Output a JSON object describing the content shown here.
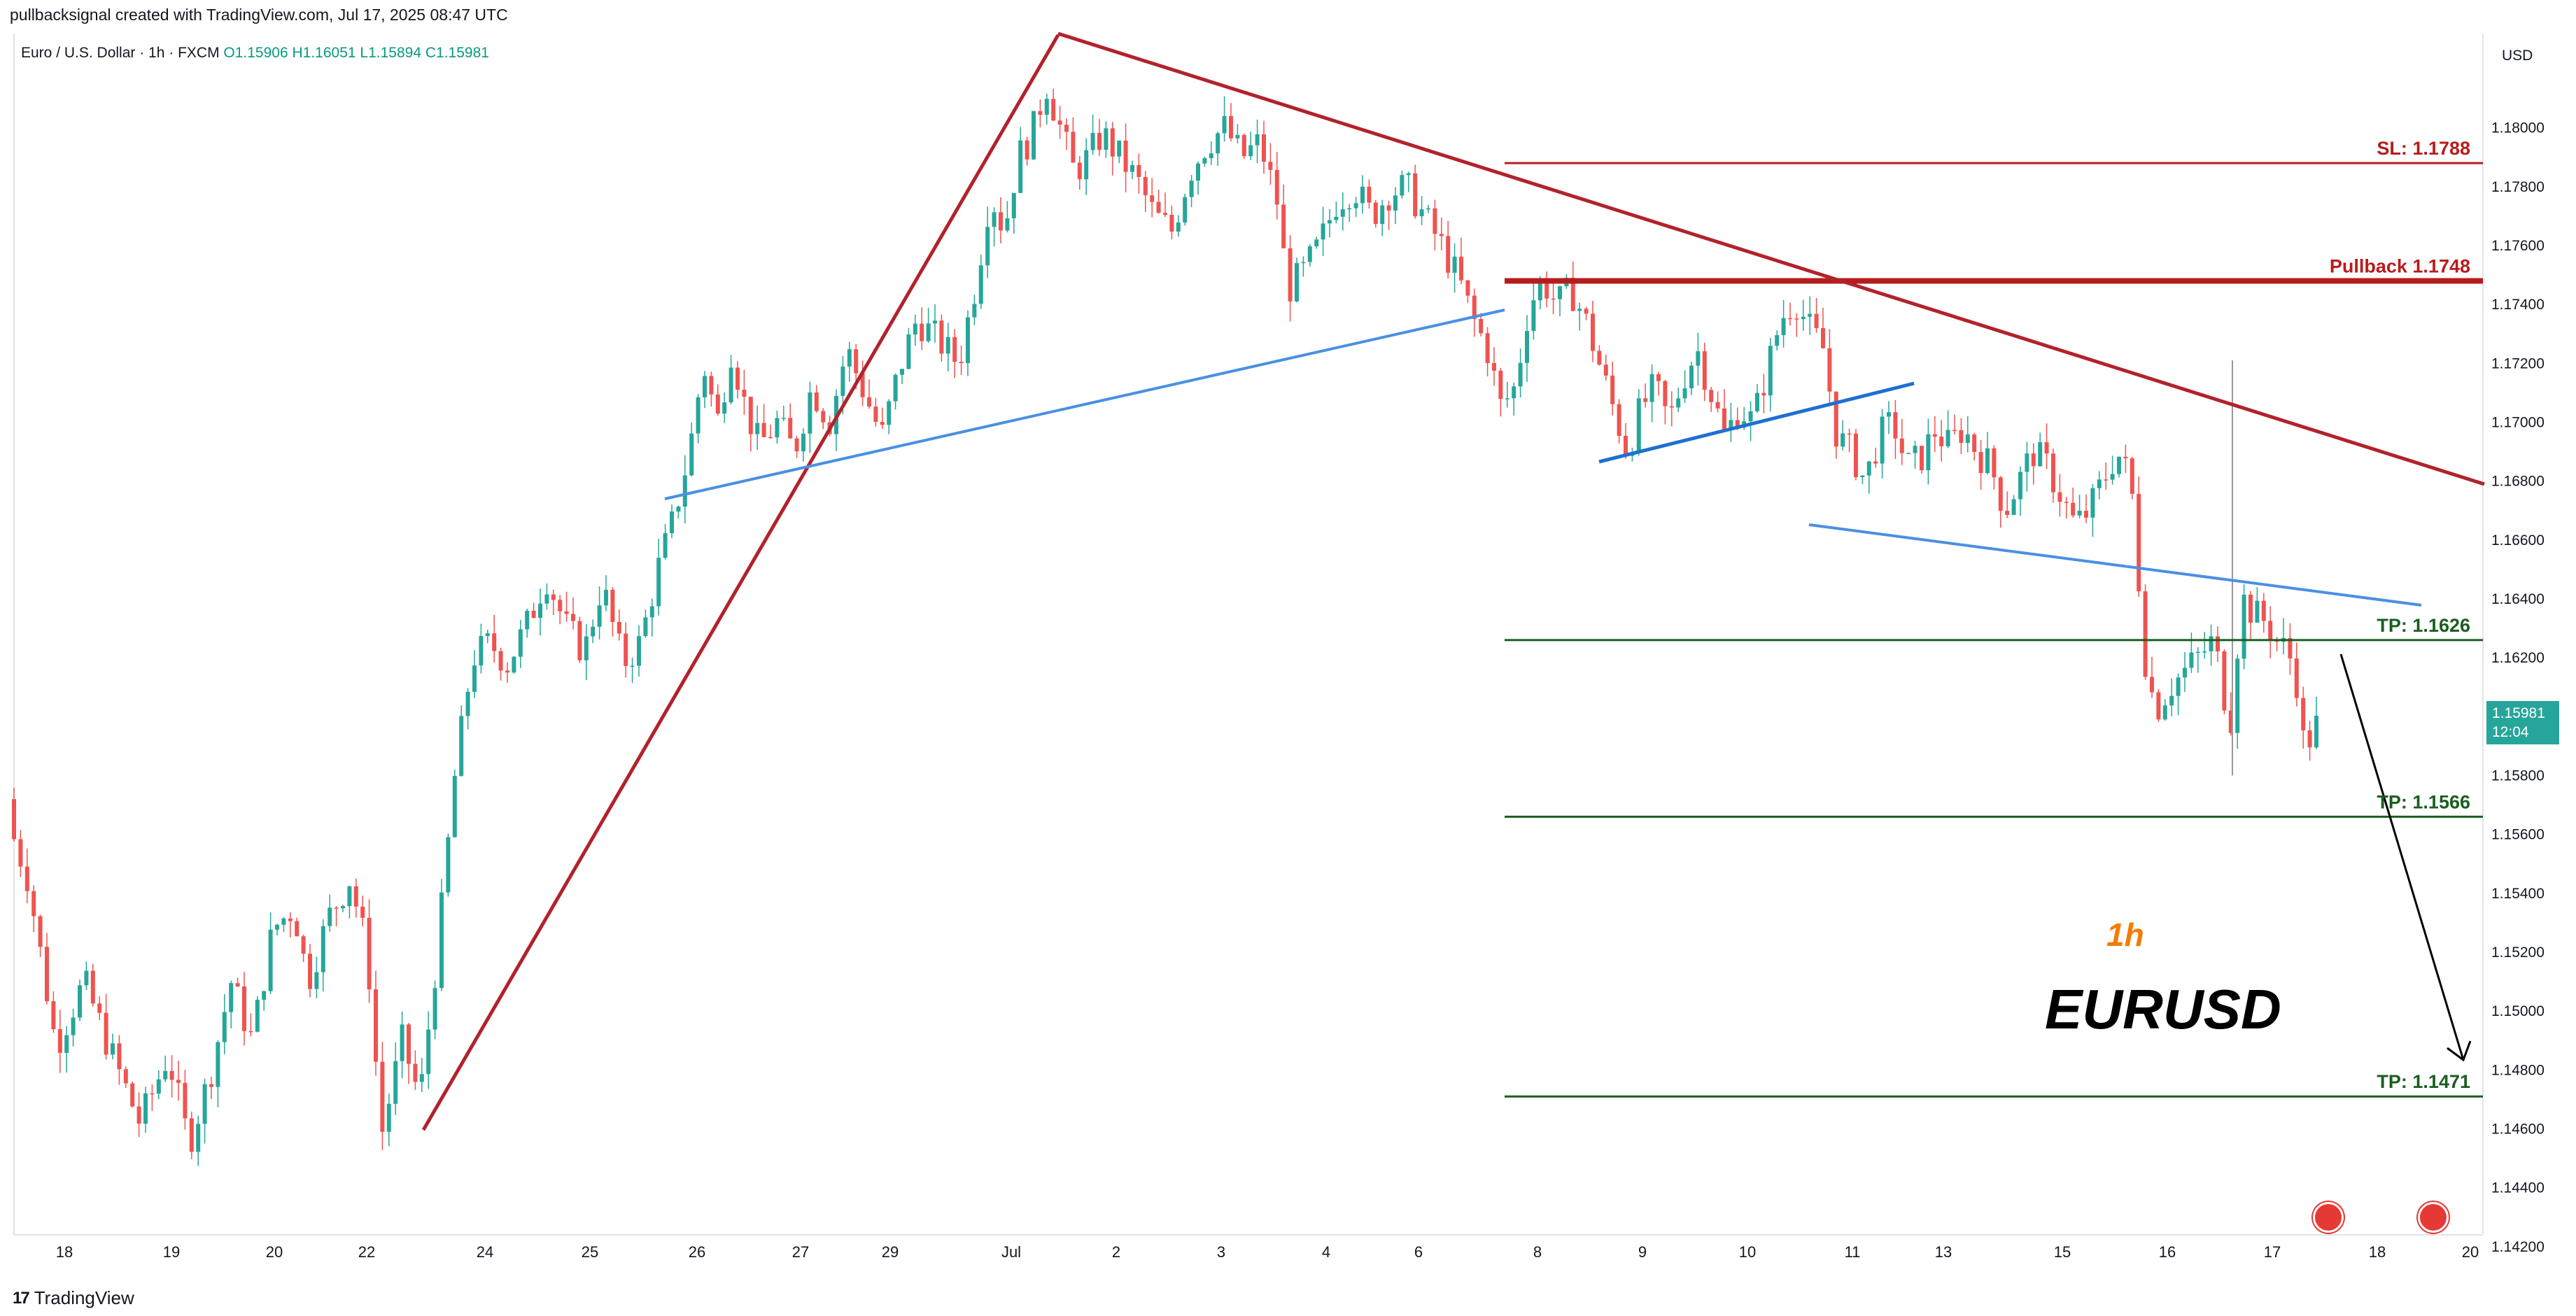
{
  "header": {
    "author_line": "pullbacksignal created with TradingView.com, Jul 17, 2025 08:47 UTC",
    "symbol": "Euro / U.S. Dollar · 1h · FXCM",
    "open": "O1.15906",
    "high": "H1.16051",
    "low": "L1.15894",
    "close": "C1.15981",
    "currency": "USD"
  },
  "price_tag": {
    "price": "1.15981",
    "countdown": "12:04"
  },
  "brand": {
    "name": "TradingView"
  },
  "overlay_text": {
    "timeframe": "1h",
    "pair": "EURUSD"
  },
  "colors": {
    "up": "#26a69a",
    "down": "#ef5350",
    "trend_red": "#b2222b",
    "trend_blue": "#4a90e2",
    "level_green": "#1b5e20",
    "label_green": "#1b5e20",
    "label_red": "#b71c1c",
    "timeframe_orange": "#f57c00"
  },
  "chart_data": {
    "type": "candlestick",
    "y_axis": {
      "ylim": [
        1.1424,
        1.1832
      ],
      "ticks": [
        "1.18000",
        "1.17800",
        "1.17600",
        "1.17400",
        "1.17200",
        "1.17000",
        "1.16800",
        "1.16600",
        "1.16400",
        "1.16200",
        "1.15800",
        "1.15600",
        "1.15400",
        "1.15200",
        "1.15000",
        "1.14800",
        "1.14600",
        "1.14400",
        "1.14200"
      ]
    },
    "x_axis": {
      "ticks": [
        "18",
        "19",
        "20",
        "22",
        "24",
        "25",
        "26",
        "27",
        "29",
        "Jul",
        "2",
        "3",
        "4",
        "6",
        "8",
        "9",
        "10",
        "11",
        "13",
        "15",
        "16",
        "17",
        "18",
        "20"
      ]
    },
    "levels": [
      {
        "label": "SL: 1.1788",
        "price": 1.1788,
        "color": "#b71c1c"
      },
      {
        "label": "Pullback 1.1748",
        "price": 1.1748,
        "color": "#b71c1c"
      },
      {
        "label": "TP: 1.1626",
        "price": 1.1626,
        "color": "#1b5e20"
      },
      {
        "label": "TP: 1.1566",
        "price": 1.1566,
        "color": "#1b5e20"
      },
      {
        "label": "TP: 1.1471",
        "price": 1.1471,
        "color": "#1b5e20"
      }
    ],
    "price_path": [
      [
        0,
        1.1572
      ],
      [
        40,
        1.1545
      ],
      [
        80,
        1.1488
      ],
      [
        120,
        1.151
      ],
      [
        160,
        1.1485
      ],
      [
        200,
        1.1462
      ],
      [
        240,
        1.1485
      ],
      [
        270,
        1.1455
      ],
      [
        300,
        1.1478
      ],
      [
        330,
        1.151
      ],
      [
        360,
        1.149
      ],
      [
        390,
        1.1528
      ],
      [
        420,
        1.1535
      ],
      [
        440,
        1.151
      ],
      [
        470,
        1.1532
      ],
      [
        500,
        1.1545
      ],
      [
        525,
        1.152
      ],
      [
        545,
        1.1458
      ],
      [
        575,
        1.149
      ],
      [
        600,
        1.147
      ],
      [
        625,
        1.152
      ],
      [
        650,
        1.158
      ],
      [
        675,
        1.162
      ],
      [
        700,
        1.1625
      ],
      [
        725,
        1.1618
      ],
      [
        755,
        1.1632
      ],
      [
        780,
        1.1648
      ],
      [
        810,
        1.163
      ],
      [
        835,
        1.1622
      ],
      [
        860,
        1.1645
      ],
      [
        890,
        1.1618
      ],
      [
        915,
        1.1625
      ],
      [
        940,
        1.165
      ],
      [
        960,
        1.1665
      ],
      [
        985,
        1.169
      ],
      [
        1005,
        1.172
      ],
      [
        1025,
        1.17
      ],
      [
        1045,
        1.1725
      ],
      [
        1065,
        1.1705
      ],
      [
        1085,
        1.1692
      ],
      [
        1110,
        1.17
      ],
      [
        1135,
        1.169
      ],
      [
        1160,
        1.1712
      ],
      [
        1185,
        1.17
      ],
      [
        1210,
        1.1725
      ],
      [
        1235,
        1.171
      ],
      [
        1260,
        1.1695
      ],
      [
        1285,
        1.1718
      ],
      [
        1310,
        1.1735
      ],
      [
        1340,
        1.1728
      ],
      [
        1370,
        1.172
      ],
      [
        1395,
        1.1748
      ],
      [
        1415,
        1.1778
      ],
      [
        1435,
        1.1765
      ],
      [
        1455,
        1.179
      ],
      [
        1475,
        1.1798
      ],
      [
        1495,
        1.1815
      ],
      [
        1515,
        1.18
      ],
      [
        1535,
        1.1785
      ],
      [
        1555,
        1.179
      ],
      [
        1575,
        1.1798
      ],
      [
        1600,
        1.179
      ],
      [
        1625,
        1.1782
      ],
      [
        1650,
        1.177
      ],
      [
        1675,
        1.1765
      ],
      [
        1700,
        1.1785
      ],
      [
        1725,
        1.1795
      ],
      [
        1750,
        1.18
      ],
      [
        1775,
        1.179
      ],
      [
        1800,
        1.1795
      ],
      [
        1825,
        1.1775
      ],
      [
        1840,
        1.1745
      ],
      [
        1860,
        1.175
      ],
      [
        1885,
        1.176
      ],
      [
        1910,
        1.1775
      ],
      [
        1935,
        1.178
      ],
      [
        1960,
        1.177
      ],
      [
        1985,
        1.1778
      ],
      [
        2010,
        1.178
      ],
      [
        2035,
        1.177
      ],
      [
        2060,
        1.176
      ],
      [
        2085,
        1.1748
      ],
      [
        2105,
        1.1735
      ],
      [
        2125,
        1.1725
      ],
      [
        2145,
        1.1705
      ],
      [
        2165,
        1.1712
      ],
      [
        2185,
        1.174
      ],
      [
        2205,
        1.1748
      ],
      [
        2225,
        1.174
      ],
      [
        2245,
        1.1745
      ],
      [
        2265,
        1.1735
      ],
      [
        2285,
        1.172
      ],
      [
        2305,
        1.1705
      ],
      [
        2325,
        1.169
      ],
      [
        2345,
        1.1705
      ],
      [
        2365,
        1.1712
      ],
      [
        2385,
        1.17
      ],
      [
        2405,
        1.1715
      ],
      [
        2425,
        1.1725
      ],
      [
        2445,
        1.171
      ],
      [
        2465,
        1.1695
      ],
      [
        2485,
        1.1705
      ],
      [
        2505,
        1.17
      ],
      [
        2525,
        1.1718
      ],
      [
        2545,
        1.1735
      ],
      [
        2565,
        1.1742
      ],
      [
        2585,
        1.1732
      ],
      [
        2605,
        1.1725
      ],
      [
        2625,
        1.1695
      ],
      [
        2645,
        1.169
      ],
      [
        2665,
        1.168
      ],
      [
        2685,
        1.1695
      ],
      [
        2705,
        1.17
      ],
      [
        2725,
        1.1685
      ],
      [
        2745,
        1.1688
      ],
      [
        2765,
        1.1697
      ],
      [
        2785,
        1.1692
      ],
      [
        2805,
        1.1698
      ],
      [
        2825,
        1.169
      ],
      [
        2845,
        1.1685
      ],
      [
        2865,
        1.167
      ],
      [
        2885,
        1.168
      ],
      [
        2905,
        1.169
      ],
      [
        2925,
        1.1685
      ],
      [
        2945,
        1.1675
      ],
      [
        2965,
        1.1665
      ],
      [
        2985,
        1.167
      ],
      [
        3005,
        1.168
      ],
      [
        3025,
        1.169
      ],
      [
        3045,
        1.168
      ],
      [
        3055,
        1.165
      ],
      [
        3065,
        1.162
      ],
      [
        3080,
        1.1602
      ],
      [
        3100,
        1.161
      ],
      [
        3120,
        1.1615
      ],
      [
        3140,
        1.162
      ],
      [
        3160,
        1.1625
      ],
      [
        3175,
        1.1615
      ],
      [
        3185,
        1.1592
      ],
      [
        3195,
        1.162
      ],
      [
        3205,
        1.164
      ],
      [
        3220,
        1.1635
      ],
      [
        3240,
        1.1632
      ],
      [
        3255,
        1.1625
      ],
      [
        3270,
        1.1622
      ],
      [
        3282,
        1.1612
      ],
      [
        3292,
        1.159
      ],
      [
        3302,
        1.1593
      ],
      [
        3312,
        1.1598
      ]
    ]
  }
}
